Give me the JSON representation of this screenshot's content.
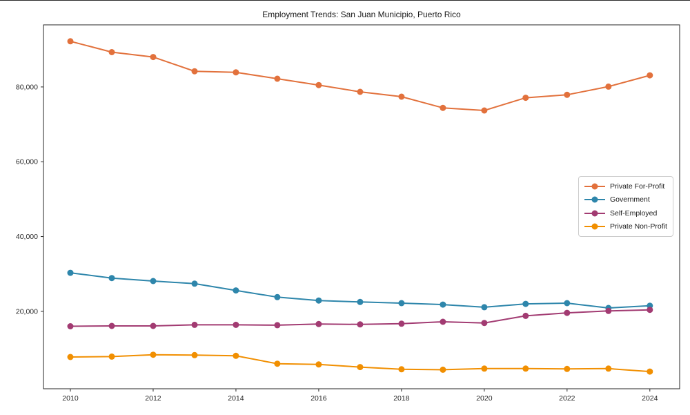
{
  "chart_data": {
    "type": "line",
    "title": "Employment Trends: San Juan Municipio, Puerto Rico",
    "xlabel": "",
    "ylabel": "",
    "grid": false,
    "legend_position": "center-right",
    "axis_color": "#262626",
    "x": [
      2010,
      2011,
      2012,
      2013,
      2014,
      2015,
      2016,
      2017,
      2018,
      2019,
      2020,
      2021,
      2022,
      2023,
      2024
    ],
    "xticks": [
      2010,
      2012,
      2014,
      2016,
      2018,
      2020,
      2022,
      2024
    ],
    "xtick_labels": [
      "2010",
      "2012",
      "2014",
      "2016",
      "2018",
      "2020",
      "2022",
      "2024"
    ],
    "yticks": [
      20000,
      40000,
      60000,
      80000
    ],
    "ytick_labels": [
      "20,000",
      "40,000",
      "60,000",
      "80,000"
    ],
    "xlim": [
      2009.35,
      2024.72
    ],
    "ylim": [
      -700,
      96600
    ],
    "series": [
      {
        "name": "Private For-Profit",
        "color": "#E2713C",
        "values": [
          92200,
          89300,
          88000,
          84200,
          83900,
          82200,
          80500,
          78700,
          77400,
          74400,
          73700,
          77100,
          77900,
          80100,
          83100
        ]
      },
      {
        "name": "Government",
        "color": "#2E86AB",
        "values": [
          30300,
          28900,
          28100,
          27400,
          25600,
          23800,
          22900,
          22500,
          22200,
          21800,
          21100,
          22000,
          22200,
          20900,
          21500
        ]
      },
      {
        "name": "Self-Employed",
        "color": "#A23B72",
        "values": [
          16000,
          16100,
          16100,
          16400,
          16400,
          16300,
          16600,
          16500,
          16700,
          17200,
          16900,
          18800,
          19600,
          20100,
          20400
        ]
      },
      {
        "name": "Private Non-Profit",
        "color": "#F18F01",
        "values": [
          7800,
          7900,
          8400,
          8300,
          8100,
          6000,
          5800,
          5100,
          4500,
          4400,
          4700,
          4700,
          4600,
          4700,
          3900
        ]
      }
    ]
  }
}
